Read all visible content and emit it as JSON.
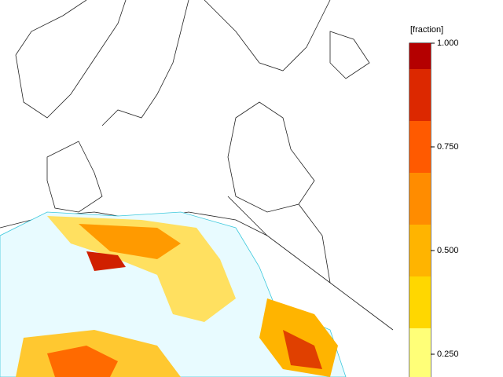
{
  "legend": {
    "title": "[fraction]",
    "range": [
      0.1875,
      1
    ],
    "ticks": [
      {
        "value": 1,
        "label": "1.000"
      },
      {
        "value": 0.75,
        "label": "0.750"
      },
      {
        "value": 0.5,
        "label": "0.500"
      },
      {
        "value": 0.25,
        "label": "0.250"
      }
    ],
    "bands": [
      {
        "from": 0.9375,
        "to": 1,
        "color": "#b40000"
      },
      {
        "from": 0.8125,
        "to": 0.9375,
        "color": "#dc2800"
      },
      {
        "from": 0.6875,
        "to": 0.8125,
        "color": "#ff5a00"
      },
      {
        "from": 0.5625,
        "to": 0.6875,
        "color": "#ff8c00"
      },
      {
        "from": 0.4375,
        "to": 0.5625,
        "color": "#ffb400"
      },
      {
        "from": 0.3125,
        "to": 0.4375,
        "color": "#ffd700"
      },
      {
        "from": 0.1875,
        "to": 0.3125,
        "color": "#ffff78"
      }
    ]
  }
}
